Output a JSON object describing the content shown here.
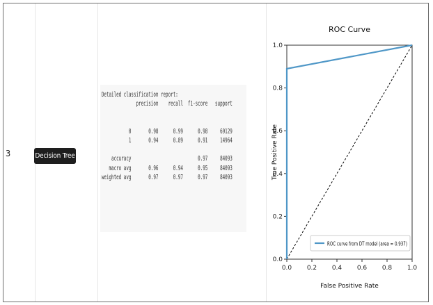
{
  "row": {
    "index": "3",
    "model_label": "Decision Tree"
  },
  "report": {
    "text": "Detailed classification report:\n              precision    recall  f1-score   support\n\n\n           0       0.98      0.99      0.98     69129\n           1       0.94      0.89      0.91     14964\n\n    accuracy                           0.97     84093\n   macro avg       0.96      0.94      0.95     84093\nweighted avg       0.97      0.97      0.97     84093"
  },
  "chart_data": {
    "type": "line",
    "title": "ROC Curve",
    "xlabel": "False Positive Rate",
    "ylabel": "True Positive Rate",
    "xlim": [
      0.0,
      1.0
    ],
    "ylim": [
      0.0,
      1.0
    ],
    "x_ticks": [
      "0.0",
      "0.2",
      "0.4",
      "0.6",
      "0.8",
      "1.0"
    ],
    "y_ticks": [
      "0.0",
      "0.2",
      "0.4",
      "0.6",
      "0.8",
      "1.0"
    ],
    "grid": false,
    "legend_position": "lower-right",
    "series": [
      {
        "name": "ROC curve from DT model (area = 0.937)",
        "color": "#4f97c7",
        "x": [
          0.0,
          0.0,
          1.0
        ],
        "y": [
          0.0,
          0.89,
          1.0
        ]
      },
      {
        "color": "#000000",
        "dashed": true,
        "x": [
          0.0,
          1.0
        ],
        "y": [
          0.0,
          1.0
        ]
      }
    ]
  }
}
